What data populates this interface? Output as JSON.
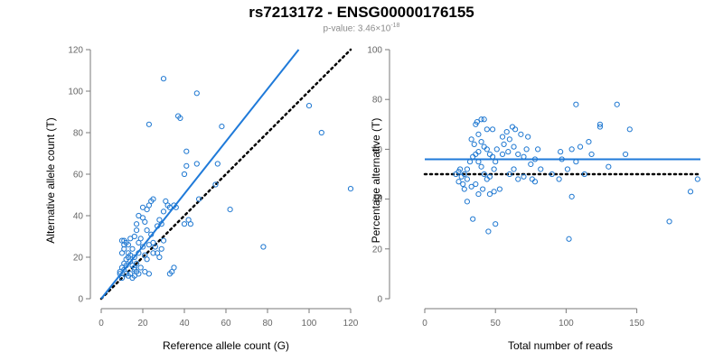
{
  "header": {
    "title": "rs7213172 - ENSG00000176155",
    "pvalue_label": "p-value: 3.46×10",
    "pvalue_exp": "-18"
  },
  "colors": {
    "points": "#1f78d1",
    "fit_line": "#1f7ad9",
    "reference_line": "#000000",
    "axis": "#7a7a7a"
  },
  "chart_data": [
    {
      "type": "scatter",
      "xlabel": "Reference allele count (G)",
      "ylabel": "Alternative allele count (T)",
      "xlim": [
        0,
        120
      ],
      "ylim": [
        0,
        120
      ],
      "xticks": [
        0,
        20,
        40,
        60,
        80,
        100,
        120
      ],
      "yticks": [
        0,
        20,
        40,
        60,
        80,
        100,
        120
      ],
      "points": [
        [
          30,
          106
        ],
        [
          46,
          99
        ],
        [
          23,
          84
        ],
        [
          37,
          88
        ],
        [
          38,
          87
        ],
        [
          58,
          83
        ],
        [
          100,
          93
        ],
        [
          106,
          80
        ],
        [
          120,
          53
        ],
        [
          78,
          25
        ],
        [
          41,
          71
        ],
        [
          41,
          64
        ],
        [
          40,
          60
        ],
        [
          46,
          65
        ],
        [
          47,
          48
        ],
        [
          55,
          55
        ],
        [
          56,
          65
        ],
        [
          62,
          43
        ],
        [
          40,
          36
        ],
        [
          43,
          36
        ],
        [
          42,
          38
        ],
        [
          36,
          44
        ],
        [
          35,
          45
        ],
        [
          33,
          44
        ],
        [
          30,
          42
        ],
        [
          32,
          45
        ],
        [
          31,
          47
        ],
        [
          24,
          47
        ],
        [
          25,
          48
        ],
        [
          23,
          45
        ],
        [
          20,
          44
        ],
        [
          22,
          43
        ],
        [
          18,
          40
        ],
        [
          20,
          39
        ],
        [
          21,
          37
        ],
        [
          17,
          36
        ],
        [
          22,
          33
        ],
        [
          24,
          31
        ],
        [
          28,
          38
        ],
        [
          27,
          35
        ],
        [
          29,
          36
        ],
        [
          25,
          27
        ],
        [
          23,
          26
        ],
        [
          26,
          25
        ],
        [
          27,
          22
        ],
        [
          29,
          24
        ],
        [
          28,
          20
        ],
        [
          30,
          28
        ],
        [
          33,
          12
        ],
        [
          35,
          15
        ],
        [
          34,
          13
        ],
        [
          9,
          13
        ],
        [
          10,
          10
        ],
        [
          11,
          14
        ],
        [
          12,
          12
        ],
        [
          9,
          12
        ],
        [
          13,
          11
        ],
        [
          10,
          15
        ],
        [
          12,
          16
        ],
        [
          11,
          17
        ],
        [
          12,
          19
        ],
        [
          13,
          20
        ],
        [
          10,
          22
        ],
        [
          11,
          24
        ],
        [
          12,
          27
        ],
        [
          11,
          28
        ],
        [
          13,
          26
        ],
        [
          15,
          24
        ],
        [
          14,
          21
        ],
        [
          13,
          22
        ],
        [
          14,
          18
        ],
        [
          15,
          16
        ],
        [
          16,
          15
        ],
        [
          17,
          13
        ],
        [
          15,
          10
        ],
        [
          14,
          12
        ],
        [
          16,
          11
        ],
        [
          18,
          12
        ],
        [
          17,
          17
        ],
        [
          16,
          20
        ],
        [
          18,
          22
        ],
        [
          20,
          25
        ],
        [
          19,
          29
        ],
        [
          16,
          30
        ],
        [
          14,
          29
        ],
        [
          10,
          28
        ],
        [
          11,
          26
        ],
        [
          17,
          33
        ],
        [
          18,
          27
        ],
        [
          21,
          21
        ],
        [
          22,
          19
        ],
        [
          25,
          22
        ],
        [
          23,
          12
        ],
        [
          21,
          13
        ],
        [
          19,
          15
        ],
        [
          16,
          14
        ]
      ],
      "fit_line": {
        "x": [
          0,
          95
        ],
        "y": [
          0,
          120
        ]
      },
      "reference_line": {
        "x": [
          0,
          120
        ],
        "y": [
          0,
          120
        ]
      }
    },
    {
      "type": "scatter",
      "xlabel": "Total number of reads",
      "ylabel": "Percentage alternative (T)",
      "xlim": [
        0,
        195
      ],
      "ylim": [
        0,
        100
      ],
      "xticks": [
        0,
        50,
        100,
        150
      ],
      "yticks": [
        0,
        20,
        40,
        60,
        80,
        100
      ],
      "points": [
        [
          107,
          78
        ],
        [
          136,
          78
        ],
        [
          124,
          70
        ],
        [
          124,
          69
        ],
        [
          145,
          68
        ],
        [
          37,
          71
        ],
        [
          40,
          72
        ],
        [
          42,
          72
        ],
        [
          44,
          68
        ],
        [
          36,
          70
        ],
        [
          38,
          66
        ],
        [
          48,
          68
        ],
        [
          55,
          65
        ],
        [
          58,
          67
        ],
        [
          62,
          69
        ],
        [
          64,
          68
        ],
        [
          68,
          66
        ],
        [
          73,
          65
        ],
        [
          60,
          64
        ],
        [
          56,
          62
        ],
        [
          40,
          63
        ],
        [
          35,
          62
        ],
        [
          33,
          64
        ],
        [
          36,
          58
        ],
        [
          38,
          59
        ],
        [
          42,
          61
        ],
        [
          44,
          60
        ],
        [
          46,
          58
        ],
        [
          48,
          57
        ],
        [
          51,
          60
        ],
        [
          55,
          58
        ],
        [
          59,
          59
        ],
        [
          63,
          61
        ],
        [
          66,
          58
        ],
        [
          70,
          57
        ],
        [
          72,
          60
        ],
        [
          75,
          54
        ],
        [
          78,
          56
        ],
        [
          80,
          60
        ],
        [
          82,
          52
        ],
        [
          76,
          48
        ],
        [
          78,
          47
        ],
        [
          70,
          49
        ],
        [
          66,
          48
        ],
        [
          63,
          52
        ],
        [
          60,
          50
        ],
        [
          50,
          55
        ],
        [
          49,
          52
        ],
        [
          46,
          49
        ],
        [
          44,
          48
        ],
        [
          42,
          50
        ],
        [
          40,
          53
        ],
        [
          38,
          55
        ],
        [
          34,
          57
        ],
        [
          32,
          55
        ],
        [
          30,
          52
        ],
        [
          28,
          50
        ],
        [
          26,
          49
        ],
        [
          24,
          51
        ],
        [
          22,
          50
        ],
        [
          24,
          47
        ],
        [
          27,
          46
        ],
        [
          30,
          48
        ],
        [
          33,
          45
        ],
        [
          36,
          46
        ],
        [
          38,
          42
        ],
        [
          41,
          44
        ],
        [
          46,
          42
        ],
        [
          49,
          43
        ],
        [
          53,
          44
        ],
        [
          50,
          30
        ],
        [
          45,
          27
        ],
        [
          34,
          32
        ],
        [
          25,
          52
        ],
        [
          28,
          44
        ],
        [
          30,
          39
        ],
        [
          96,
          59
        ],
        [
          97,
          56
        ],
        [
          101,
          52
        ],
        [
          104,
          60
        ],
        [
          107,
          55
        ],
        [
          110,
          61
        ],
        [
          113,
          50
        ],
        [
          116,
          63
        ],
        [
          118,
          58
        ],
        [
          130,
          53
        ],
        [
          142,
          58
        ],
        [
          188,
          43
        ],
        [
          173,
          31
        ],
        [
          193,
          48
        ],
        [
          104,
          41
        ],
        [
          102,
          24
        ],
        [
          90,
          50
        ],
        [
          95,
          48
        ]
      ],
      "fit_line": {
        "x": [
          0,
          195
        ],
        "y": [
          56,
          56
        ]
      },
      "reference_line": {
        "x": [
          0,
          195
        ],
        "y": [
          50,
          50
        ]
      }
    }
  ]
}
